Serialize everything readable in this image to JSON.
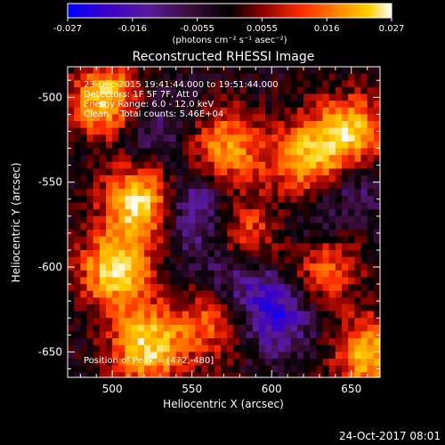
{
  "colorbar": {
    "ticks": [
      "-0.027",
      "-0.016",
      "-0.0055",
      "0.0055",
      "0.016",
      "0.027"
    ],
    "unit_label": "(photons cm⁻² s⁻¹ asec⁻²)",
    "colormap": [
      "#0000ff",
      "#3a00c8",
      "#5a1a9a",
      "#3a0d3a",
      "#000000",
      "#8a0000",
      "#ff2a00",
      "#ff8a00",
      "#ffd000",
      "#ffffff"
    ]
  },
  "chart_data": {
    "type": "heatmap",
    "title": "Reconstructed RHESSI Image",
    "xlabel": "Heliocentric X (arcsec)",
    "ylabel": "Heliocentric Y (arcsec)",
    "xlim": [
      472,
      668
    ],
    "ylim": [
      -665,
      -482
    ],
    "x_ticks": [
      "500",
      "550",
      "600",
      "650"
    ],
    "y_ticks": [
      "-500",
      "-550",
      "-600",
      "-650"
    ],
    "x_tick_values": [
      500,
      550,
      600,
      650
    ],
    "y_tick_values": [
      -500,
      -550,
      -600,
      -650
    ],
    "info_lines": [
      "23-Dec-2015 19:41:44.000 to 19:51:44.000",
      "Detectors: 1F 5F 7F, Att 0",
      "Energy Range: 6.0 - 12.0 keV",
      "Clean    Total counts: 5.46E+04"
    ],
    "peak_text": "Position of Peak = [472,-480]",
    "features": [
      {
        "kind": "negative",
        "x": 520,
        "y": -515,
        "strength": 0.35
      },
      {
        "kind": "negative",
        "x": 550,
        "y": -565,
        "strength": 0.55
      },
      {
        "kind": "negative",
        "x": 575,
        "y": -600,
        "strength": 0.55
      },
      {
        "kind": "negative",
        "x": 600,
        "y": -625,
        "strength": 0.6
      },
      {
        "kind": "negative",
        "x": 625,
        "y": -580,
        "strength": 0.45
      },
      {
        "kind": "negative",
        "x": 650,
        "y": -545,
        "strength": 0.35
      },
      {
        "kind": "positive",
        "x": 495,
        "y": -500,
        "strength": 0.9
      },
      {
        "kind": "positive",
        "x": 515,
        "y": -560,
        "strength": 0.95
      },
      {
        "kind": "positive",
        "x": 500,
        "y": -600,
        "strength": 0.9
      },
      {
        "kind": "positive",
        "x": 520,
        "y": -645,
        "strength": 0.9
      },
      {
        "kind": "positive",
        "x": 570,
        "y": -528,
        "strength": 0.7
      },
      {
        "kind": "positive",
        "x": 580,
        "y": -582,
        "strength": 0.7
      },
      {
        "kind": "positive",
        "x": 620,
        "y": -535,
        "strength": 0.75
      },
      {
        "kind": "positive",
        "x": 648,
        "y": -520,
        "strength": 0.9
      },
      {
        "kind": "positive",
        "x": 630,
        "y": -595,
        "strength": 0.75
      },
      {
        "kind": "positive",
        "x": 660,
        "y": -650,
        "strength": 0.8
      },
      {
        "kind": "positive",
        "x": 560,
        "y": -630,
        "strength": 0.55
      }
    ]
  },
  "footer": {
    "timestamp": "24-Oct-2017 08:01"
  }
}
